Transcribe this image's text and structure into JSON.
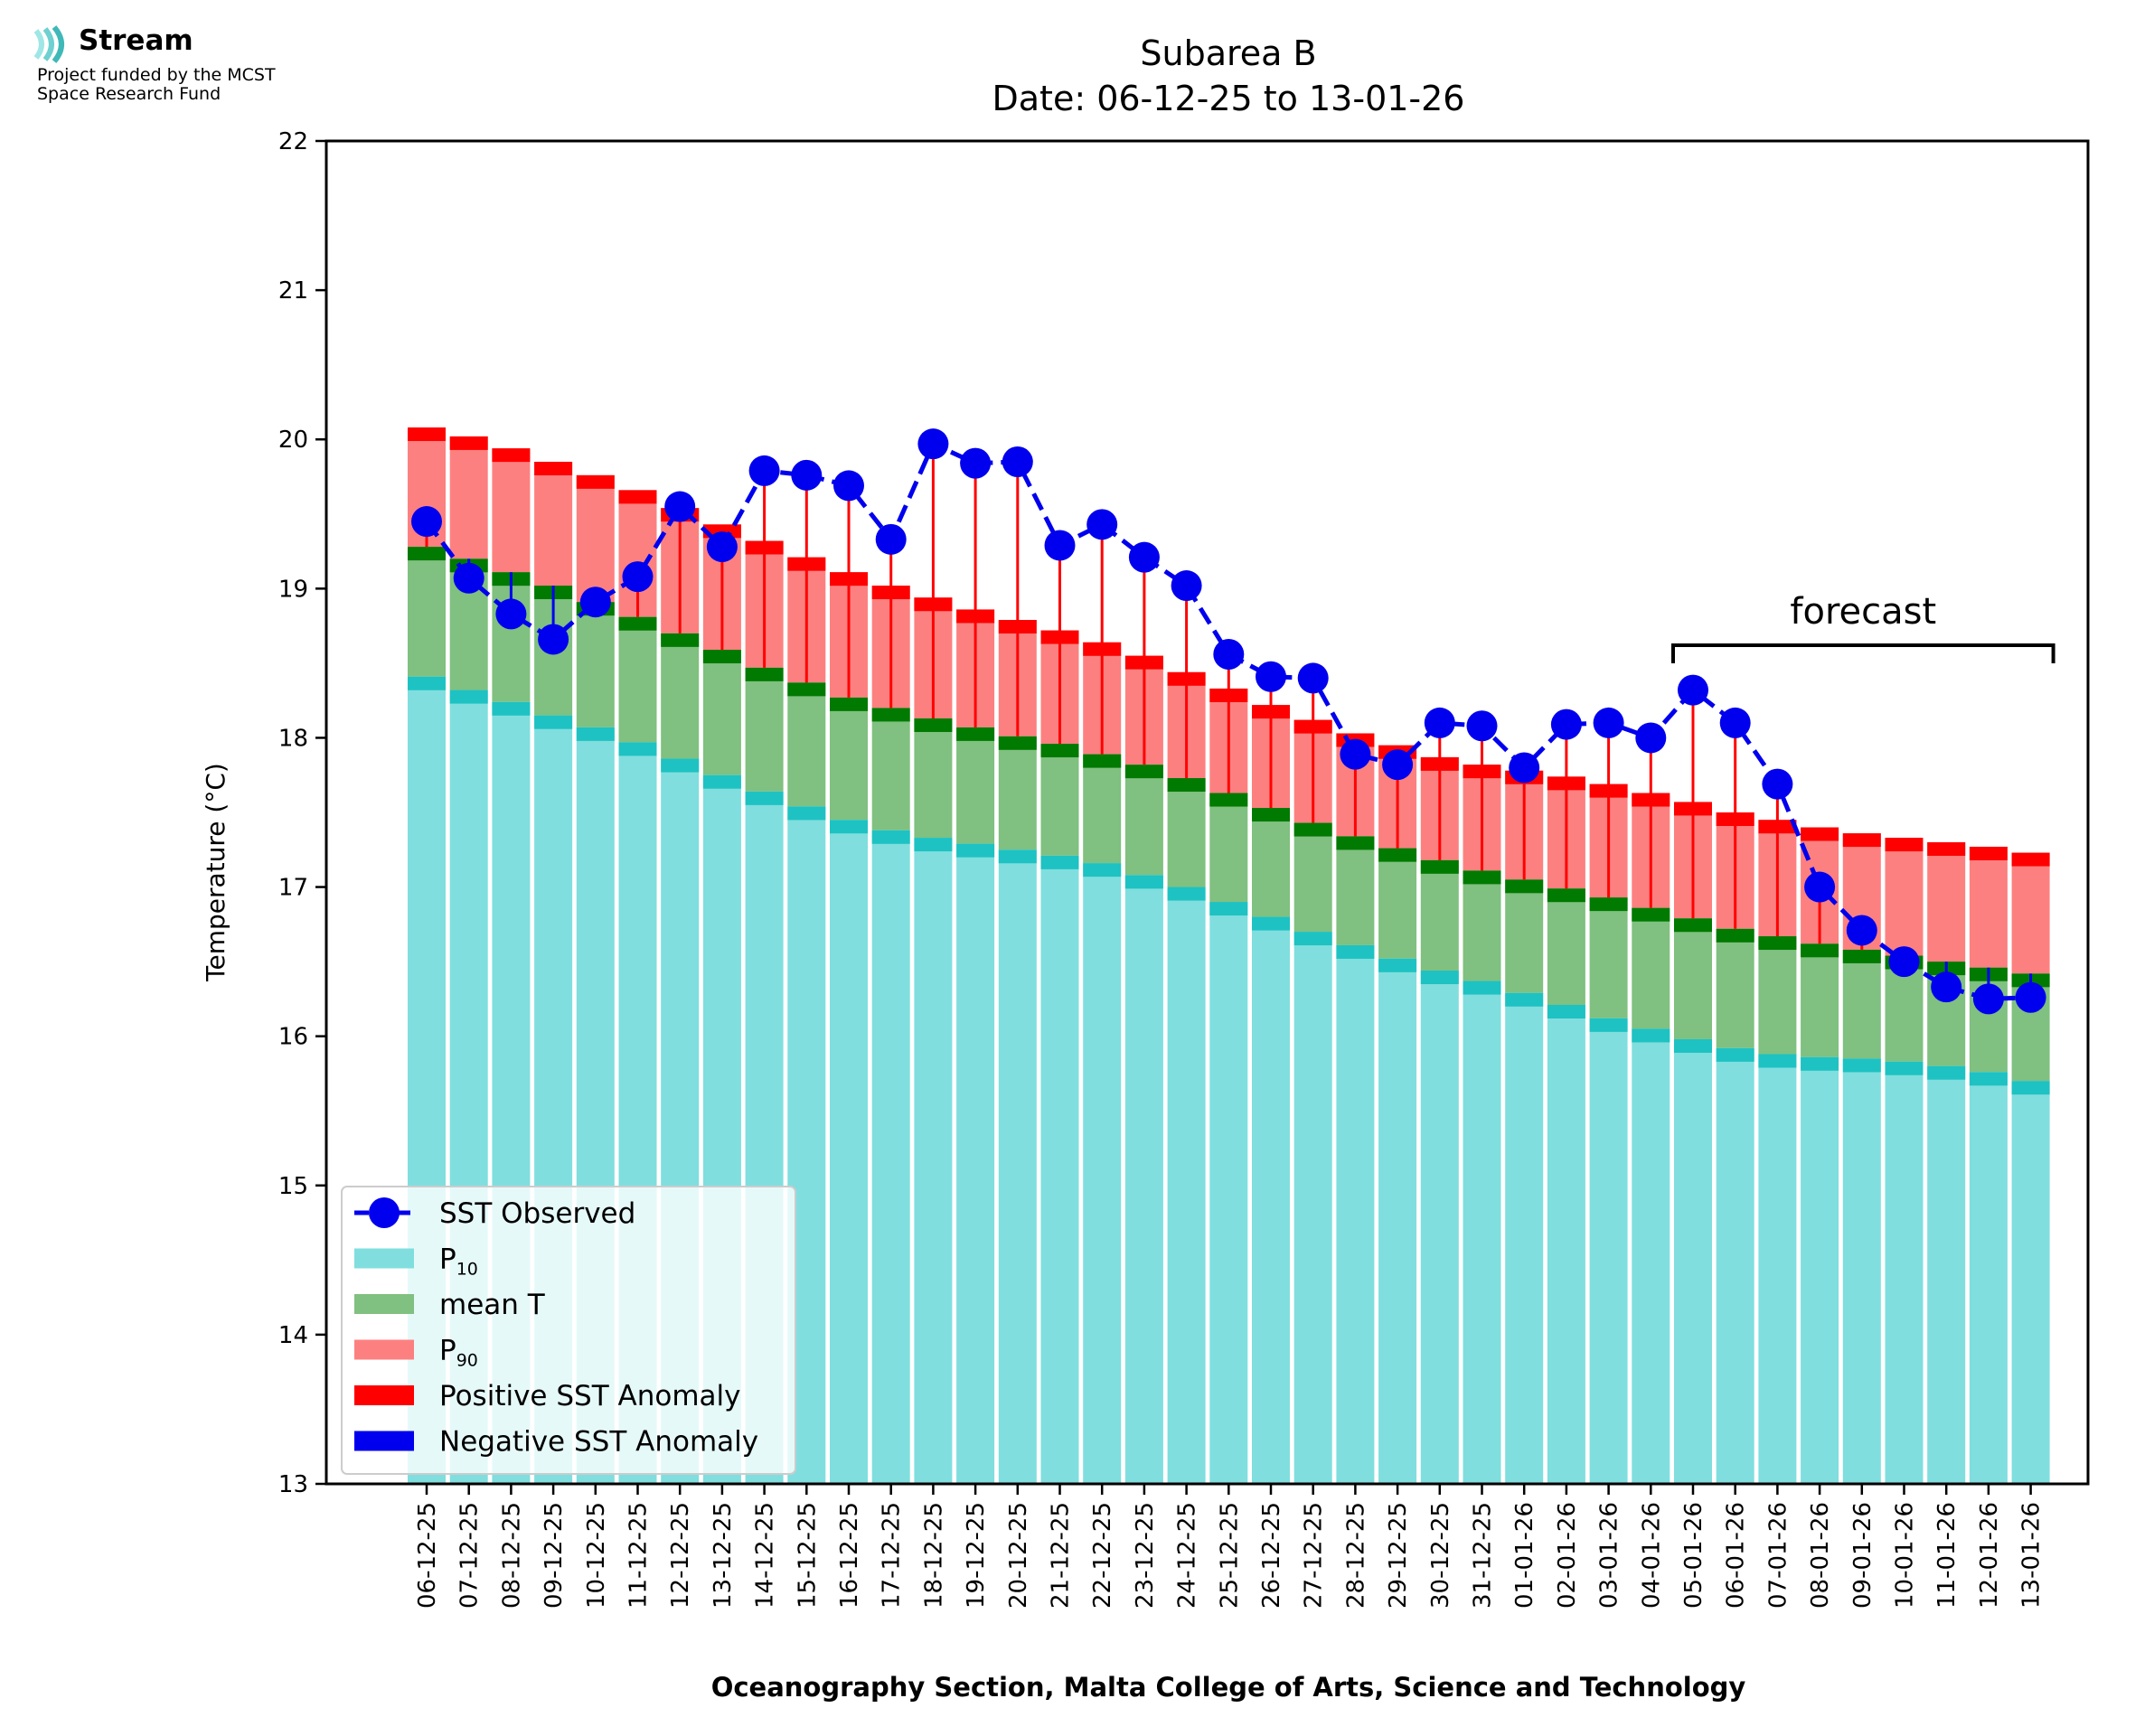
{
  "logo": {
    "name": "Stream",
    "line1": "Project funded by the MCST",
    "line2": "Space Research Fund",
    "colors": [
      "#7fd8d8",
      "#49b8b8",
      "#2a9a9a"
    ]
  },
  "chart_data": {
    "type": "bar",
    "title": "Subarea B",
    "subtitle": "Date: 06-12-25 to 13-01-26",
    "xlabel": "Oceanography Section, Malta College of Arts, Science and Technology",
    "ylabel": "Temperature (°C)",
    "ylim": [
      13,
      22
    ],
    "yticks": [
      13,
      14,
      15,
      16,
      17,
      18,
      19,
      20,
      21,
      22
    ],
    "grid": false,
    "legend_position": "lower-left",
    "categories": [
      "06-12-25",
      "07-12-25",
      "08-12-25",
      "09-12-25",
      "10-12-25",
      "11-12-25",
      "12-12-25",
      "13-12-25",
      "14-12-25",
      "15-12-25",
      "16-12-25",
      "17-12-25",
      "18-12-25",
      "19-12-25",
      "20-12-25",
      "21-12-25",
      "22-12-25",
      "23-12-25",
      "24-12-25",
      "25-12-25",
      "26-12-25",
      "27-12-25",
      "28-12-25",
      "29-12-25",
      "30-12-25",
      "31-12-25",
      "01-01-26",
      "02-01-26",
      "03-01-26",
      "04-01-26",
      "05-01-26",
      "06-01-26",
      "07-01-26",
      "08-01-26",
      "09-01-26",
      "10-01-26",
      "11-01-26",
      "12-01-26",
      "13-01-26"
    ],
    "series": [
      {
        "name": "P10",
        "color": "#80dede",
        "values": [
          18.41,
          18.32,
          18.24,
          18.15,
          18.07,
          17.97,
          17.86,
          17.75,
          17.64,
          17.54,
          17.45,
          17.38,
          17.33,
          17.29,
          17.25,
          17.21,
          17.16,
          17.08,
          17.0,
          16.9,
          16.8,
          16.7,
          16.61,
          16.52,
          16.44,
          16.37,
          16.29,
          16.21,
          16.12,
          16.05,
          15.98,
          15.92,
          15.88,
          15.86,
          15.85,
          15.83,
          15.8,
          15.76,
          15.7
        ]
      },
      {
        "name": "mean T",
        "color": "#80c080",
        "values": [
          19.28,
          19.2,
          19.11,
          19.02,
          18.91,
          18.81,
          18.7,
          18.59,
          18.47,
          18.37,
          18.27,
          18.2,
          18.13,
          18.07,
          18.01,
          17.96,
          17.89,
          17.82,
          17.73,
          17.63,
          17.53,
          17.43,
          17.34,
          17.26,
          17.18,
          17.11,
          17.05,
          16.99,
          16.93,
          16.86,
          16.79,
          16.72,
          16.67,
          16.62,
          16.58,
          16.54,
          16.5,
          16.46,
          16.42
        ]
      },
      {
        "name": "P90",
        "color": "#fd8080",
        "values": [
          20.08,
          20.02,
          19.94,
          19.85,
          19.76,
          19.66,
          19.54,
          19.43,
          19.32,
          19.21,
          19.11,
          19.02,
          18.94,
          18.86,
          18.79,
          18.72,
          18.64,
          18.55,
          18.44,
          18.33,
          18.22,
          18.12,
          18.03,
          17.95,
          17.87,
          17.82,
          17.78,
          17.74,
          17.69,
          17.63,
          17.57,
          17.5,
          17.45,
          17.4,
          17.36,
          17.33,
          17.3,
          17.27,
          17.23
        ]
      },
      {
        "name": "SST Observed",
        "color": "#0000ee",
        "type": "line",
        "style": "dashed-with-markers",
        "values": [
          19.45,
          19.07,
          18.83,
          18.66,
          18.91,
          19.08,
          19.55,
          19.28,
          19.79,
          19.76,
          19.69,
          19.33,
          19.97,
          19.84,
          19.85,
          19.29,
          19.43,
          19.21,
          19.02,
          18.56,
          18.41,
          18.4,
          17.89,
          17.82,
          18.1,
          18.08,
          17.8,
          18.09,
          18.1,
          18.0,
          18.32,
          18.1,
          17.69,
          17.0,
          16.71,
          16.5,
          16.33,
          16.25,
          16.26
        ]
      }
    ],
    "marker_colors": {
      "p10_band": "#1ec2c2",
      "mean_band": "#007a00",
      "p90_band": "#ff0000",
      "positive_anomaly": "#ff0000",
      "negative_anomaly": "#0000ee"
    },
    "legend": [
      {
        "label": "SST Observed",
        "kind": "line",
        "color": "#0000ee"
      },
      {
        "label": "P",
        "sub": "10",
        "kind": "patch",
        "color": "#80dede"
      },
      {
        "label": "mean T",
        "kind": "patch",
        "color": "#80c080"
      },
      {
        "label": "P",
        "sub": "90",
        "kind": "patch",
        "color": "#fd8080"
      },
      {
        "label": "Positive SST Anomaly",
        "kind": "patch",
        "color": "#ff0000"
      },
      {
        "label": "Negative SST Anomaly",
        "kind": "patch",
        "color": "#0000ee"
      }
    ],
    "annotations": [
      {
        "text": "forecast",
        "from_category": "05-01-26",
        "to_category": "13-01-26"
      }
    ]
  }
}
